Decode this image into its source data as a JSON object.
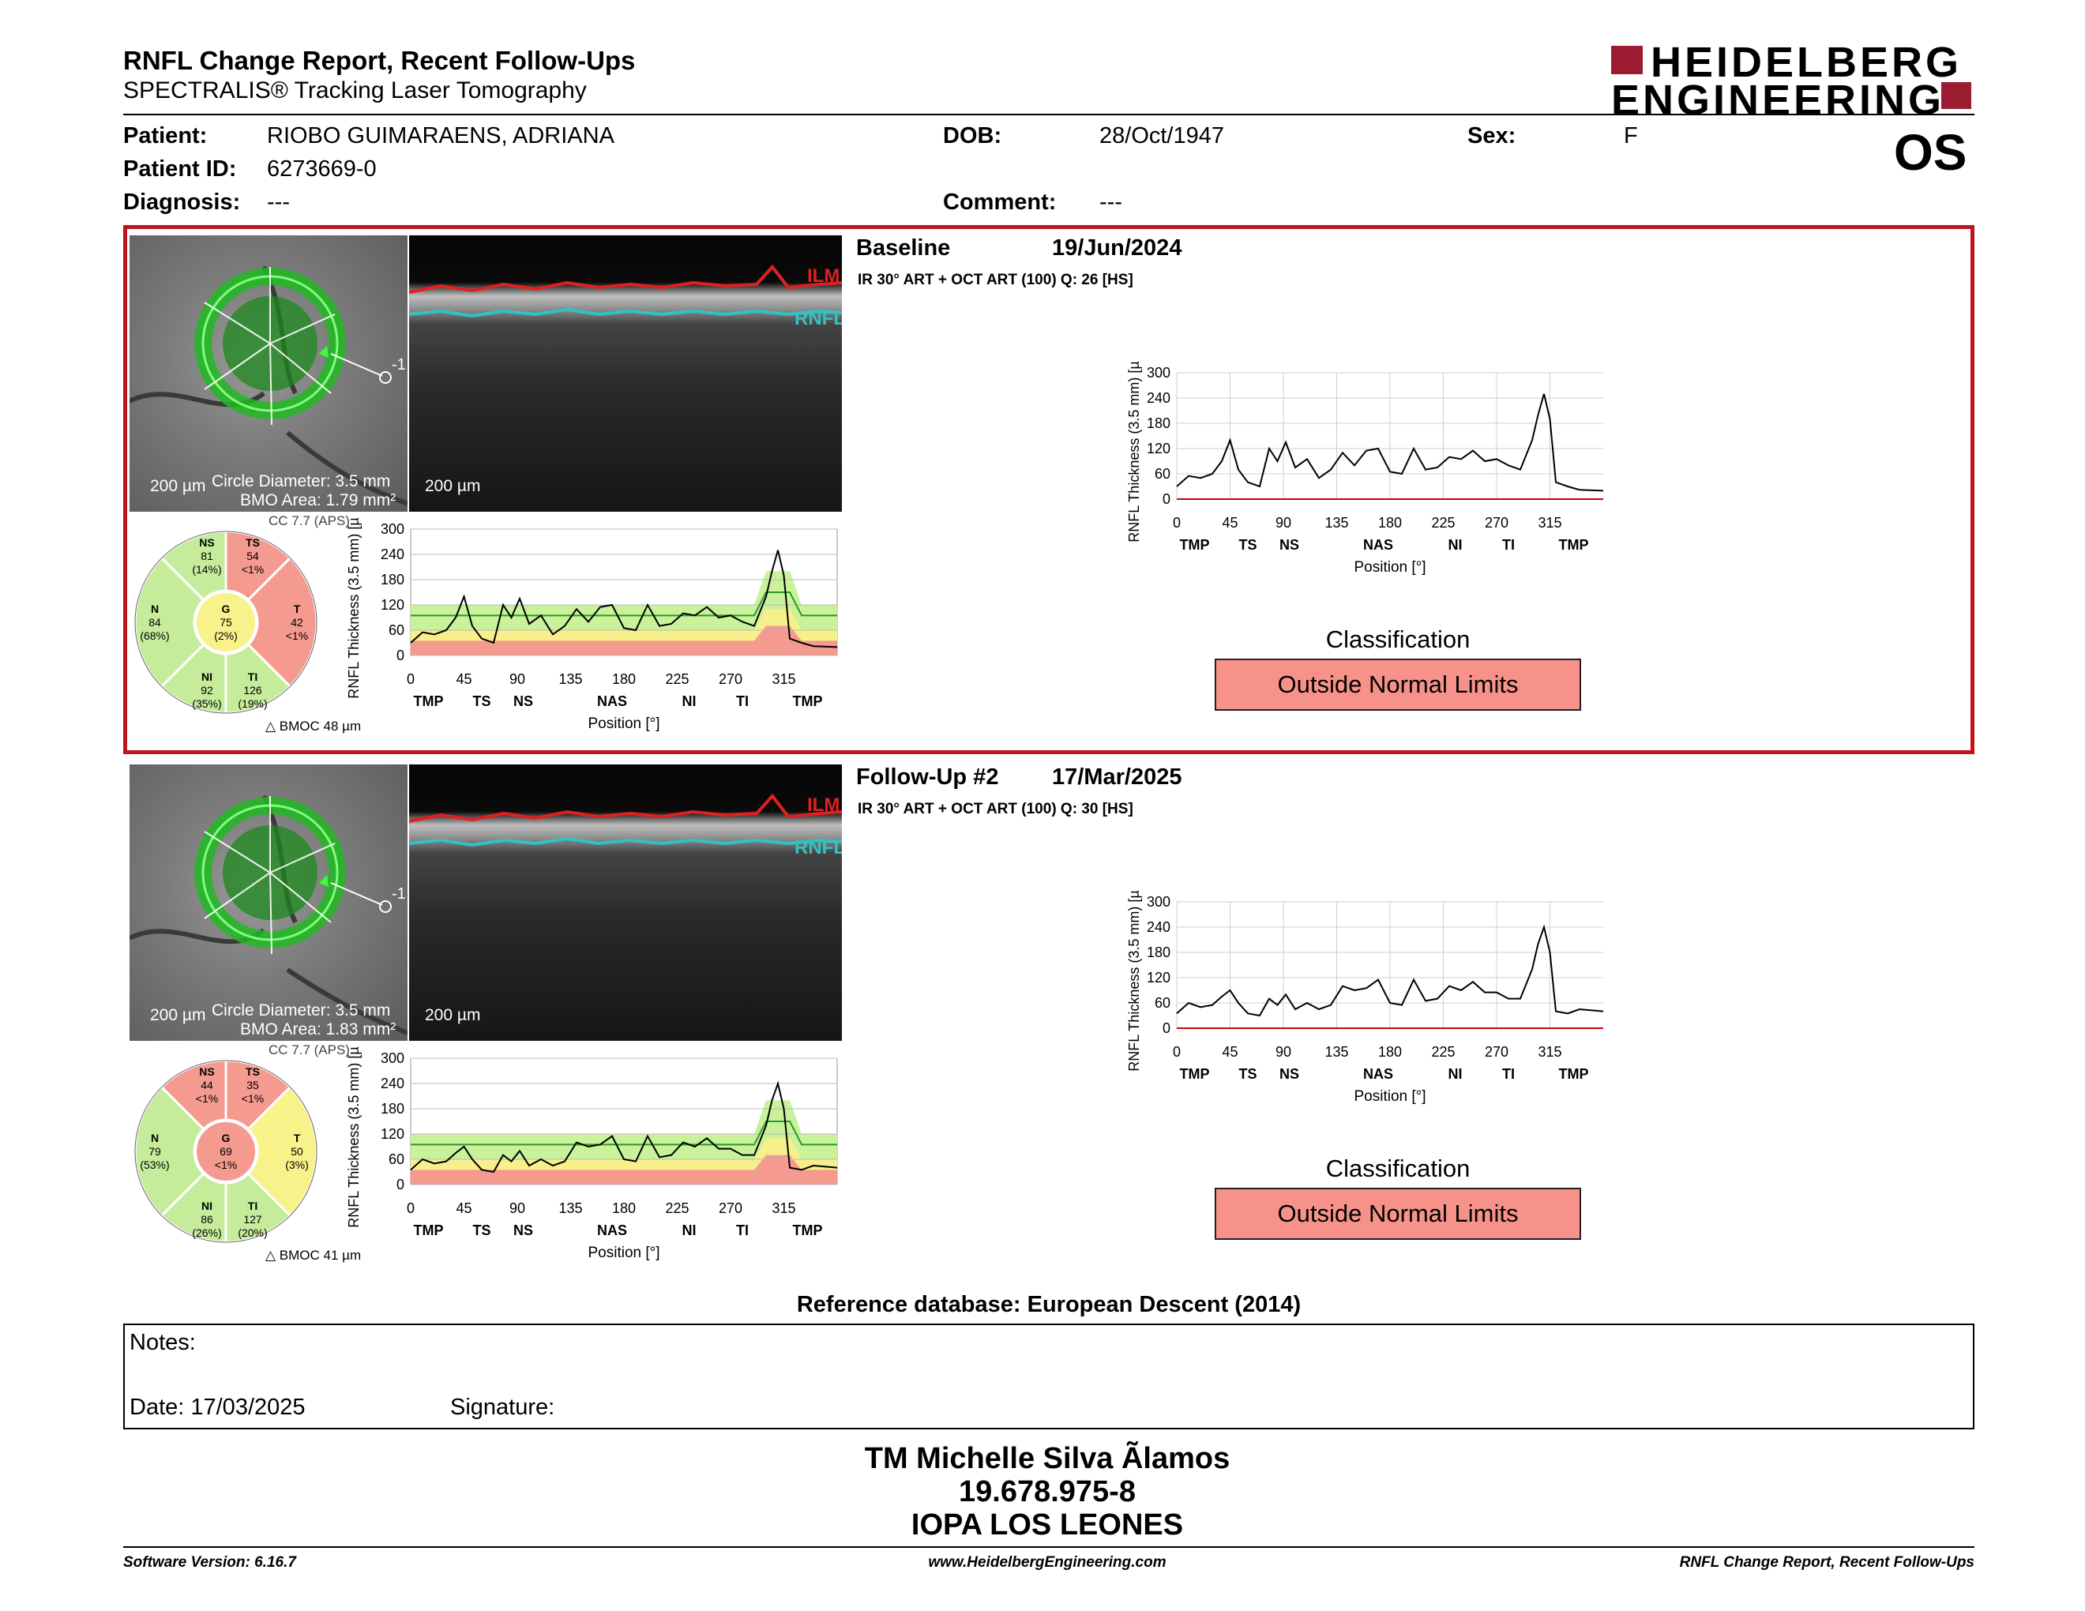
{
  "header": {
    "title": "RNFL Change Report, Recent Follow-Ups",
    "subtitle": "SPECTRALIS® Tracking Laser Tomography",
    "logo_line1": "HEIDELBERG",
    "logo_line2": "ENGINEERING",
    "eye": "OS"
  },
  "patient": {
    "name_label": "Patient:",
    "name": "RIOBO GUIMARAENS, ADRIANA",
    "dob_label": "DOB:",
    "dob": "28/Oct/1947",
    "sex_label": "Sex:",
    "sex": "F",
    "id_label": "Patient ID:",
    "id": "6273669-0",
    "diagnosis_label": "Diagnosis:",
    "diagnosis": "---",
    "comment_label": "Comment:",
    "comment": "---"
  },
  "exams": [
    {
      "label": "Baseline",
      "date": "19/Jun/2024",
      "acq": "IR 30° ART + OCT ART (100) Q: 26 [HS]",
      "scale": "200 µm",
      "circle": "Circle Diameter: 3.5 mm",
      "bmo": "BMO Area: 1.79 mm²",
      "ilm": "ILM",
      "rnfl": "RNFL",
      "cc": "CC 7.7 (APS)",
      "bmoc": "BMOC 48 µm",
      "sectors": {
        "NS": {
          "name": "NS",
          "value": "81",
          "pct": "(14%)",
          "color": "#c5ec9b"
        },
        "TS": {
          "name": "TS",
          "value": "54",
          "pct": "<1%",
          "color": "#f59a8f"
        },
        "N": {
          "name": "N",
          "value": "84",
          "pct": "(68%)",
          "color": "#c5ec9b"
        },
        "G": {
          "name": "G",
          "value": "75",
          "pct": "(2%)",
          "color": "#f8f28a"
        },
        "T": {
          "name": "T",
          "value": "42",
          "pct": "<1%",
          "color": "#f59a8f"
        },
        "NI": {
          "name": "NI",
          "value": "92",
          "pct": "(35%)",
          "color": "#c5ec9b"
        },
        "TI": {
          "name": "TI",
          "value": "126",
          "pct": "(19%)",
          "color": "#c5ec9b"
        }
      },
      "classification_title": "Classification",
      "classification": "Outside Normal Limits"
    },
    {
      "label": "Follow-Up #2",
      "date": "17/Mar/2025",
      "acq": "IR 30° ART + OCT ART (100) Q: 30 [HS]",
      "scale": "200 µm",
      "circle": "Circle Diameter: 3.5 mm",
      "bmo": "BMO Area: 1.83 mm²",
      "ilm": "ILM",
      "rnfl": "RNFL",
      "cc": "CC 7.7 (APS)",
      "bmoc": "BMOC 41 µm",
      "sectors": {
        "NS": {
          "name": "NS",
          "value": "44",
          "pct": "<1%",
          "color": "#f59a8f"
        },
        "TS": {
          "name": "TS",
          "value": "35",
          "pct": "<1%",
          "color": "#f59a8f"
        },
        "N": {
          "name": "N",
          "value": "79",
          "pct": "(53%)",
          "color": "#c5ec9b"
        },
        "G": {
          "name": "G",
          "value": "69",
          "pct": "<1%",
          "color": "#f59a8f"
        },
        "T": {
          "name": "T",
          "value": "50",
          "pct": "(3%)",
          "color": "#f8f28a"
        },
        "NI": {
          "name": "NI",
          "value": "86",
          "pct": "(26%)",
          "color": "#c5ec9b"
        },
        "TI": {
          "name": "TI",
          "value": "127",
          "pct": "(20%)",
          "color": "#c5ec9b"
        }
      },
      "classification_title": "Classification",
      "classification": "Outside Normal Limits"
    }
  ],
  "chart_data": [
    {
      "type": "line",
      "title": "Baseline",
      "ylabel": "RNFL Thickness (3.5 mm) [µm]",
      "xlabel": "Position [°]",
      "ylim": [
        0,
        300
      ],
      "xlim": [
        0,
        360
      ],
      "yticks": [
        "0",
        "60",
        "120",
        "180",
        "240",
        "300"
      ],
      "xticks": [
        "0",
        "45",
        "90",
        "135",
        "180",
        "225",
        "270",
        "315"
      ],
      "regions": [
        "TMP",
        "TS",
        "NS",
        "NAS",
        "NI",
        "TI",
        "TMP"
      ],
      "x": [
        0,
        10,
        20,
        30,
        38,
        45,
        52,
        60,
        70,
        78,
        85,
        92,
        100,
        110,
        120,
        130,
        140,
        150,
        160,
        170,
        180,
        190,
        200,
        210,
        220,
        230,
        240,
        250,
        260,
        270,
        280,
        290,
        300,
        305,
        310,
        315,
        320,
        330,
        340,
        360
      ],
      "y": [
        30,
        55,
        50,
        60,
        90,
        140,
        70,
        40,
        30,
        120,
        90,
        135,
        75,
        95,
        50,
        70,
        110,
        80,
        115,
        120,
        65,
        60,
        120,
        70,
        75,
        100,
        95,
        115,
        90,
        95,
        80,
        70,
        140,
        200,
        250,
        190,
        40,
        30,
        22,
        20
      ]
    },
    {
      "type": "line",
      "title": "Follow-Up #2",
      "ylabel": "RNFL Thickness (3.5 mm) [µm]",
      "xlabel": "Position [°]",
      "ylim": [
        0,
        300
      ],
      "xlim": [
        0,
        360
      ],
      "yticks": [
        "0",
        "60",
        "120",
        "180",
        "240",
        "300"
      ],
      "xticks": [
        "0",
        "45",
        "90",
        "135",
        "180",
        "225",
        "270",
        "315"
      ],
      "regions": [
        "TMP",
        "TS",
        "NS",
        "NAS",
        "NI",
        "TI",
        "TMP"
      ],
      "x": [
        0,
        10,
        20,
        30,
        38,
        45,
        52,
        60,
        70,
        78,
        85,
        92,
        100,
        110,
        120,
        130,
        140,
        150,
        160,
        170,
        180,
        190,
        200,
        210,
        220,
        230,
        240,
        250,
        260,
        270,
        280,
        290,
        300,
        305,
        310,
        315,
        320,
        330,
        340,
        360
      ],
      "y": [
        35,
        60,
        50,
        55,
        75,
        90,
        60,
        35,
        30,
        70,
        55,
        80,
        45,
        60,
        45,
        55,
        100,
        90,
        95,
        115,
        60,
        55,
        115,
        65,
        70,
        100,
        90,
        110,
        85,
        85,
        70,
        70,
        140,
        200,
        240,
        180,
        40,
        35,
        45,
        40
      ]
    }
  ],
  "reference": "Reference database: European Descent (2014)",
  "notes": {
    "label": "Notes:",
    "date_label": "Date: 17/03/2025",
    "signature_label": "Signature:"
  },
  "signoff": {
    "line1": "TM Michelle Silva Ãlamos",
    "line2": "19.678.975-8",
    "line3": "IOPA LOS LEONES"
  },
  "footer": {
    "left": "Software Version: 6.16.7",
    "center": "www.HeidelbergEngineering.com",
    "right": "RNFL Change Report, Recent Follow-Ups"
  }
}
